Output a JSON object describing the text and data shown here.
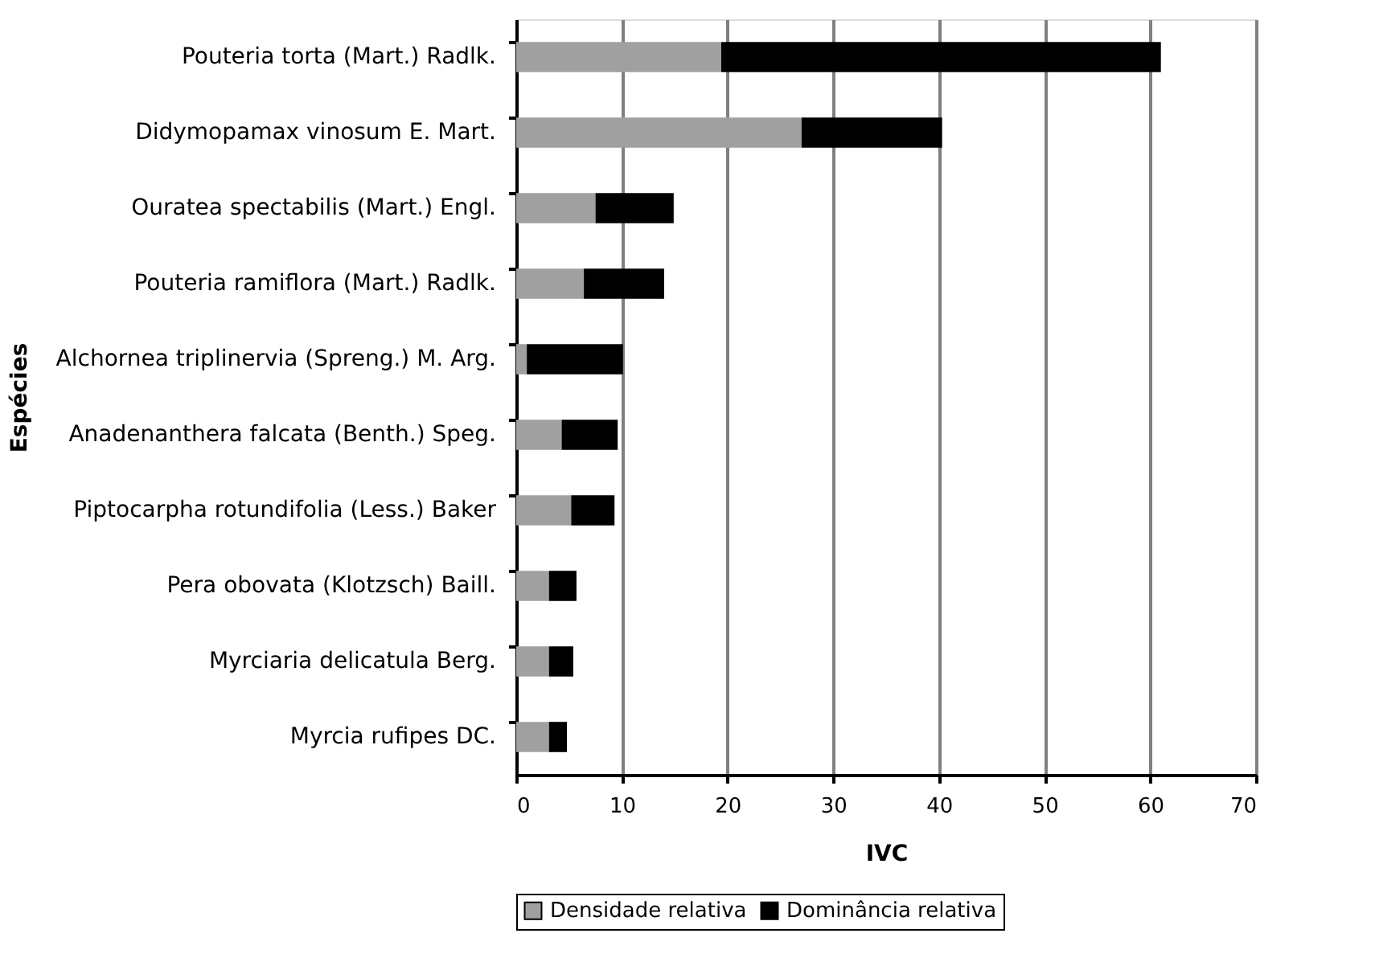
{
  "chart_data": {
    "type": "bar",
    "orientation": "horizontal",
    "stacked": true,
    "categories": [
      "Pouteria torta (Mart.) Radlk.",
      "Didymopamax vinosum E. Mart.",
      "Ouratea spectabilis (Mart.) Engl.",
      "Pouteria ramiflora (Mart.) Radlk.",
      "Alchornea triplinervia (Spreng.) M. Arg.",
      "Anadenanthera falcata (Benth.) Speg.",
      "Piptocarpha rotundifolia (Less.) Baker",
      "Pera obovata (Klotzsch) Baill.",
      "Myrciaria delicatula Berg.",
      "Myrcia rufipes DC."
    ],
    "series": [
      {
        "name": "Densidade relativa",
        "color": "#a0a0a0",
        "values": [
          19.4,
          27.0,
          7.5,
          6.4,
          1.0,
          4.3,
          5.2,
          3.1,
          3.1,
          3.1
        ]
      },
      {
        "name": "Dominância relativa",
        "color": "#000000",
        "values": [
          41.6,
          13.3,
          7.4,
          7.6,
          9.1,
          5.3,
          4.1,
          2.6,
          2.3,
          1.7
        ]
      }
    ],
    "xlabel": "IVC",
    "ylabel": "Espécies",
    "xlim": [
      0,
      70
    ],
    "xticks": [
      0,
      10,
      20,
      30,
      40,
      50,
      60,
      70
    ],
    "grid": "x",
    "legend": "bottom"
  }
}
